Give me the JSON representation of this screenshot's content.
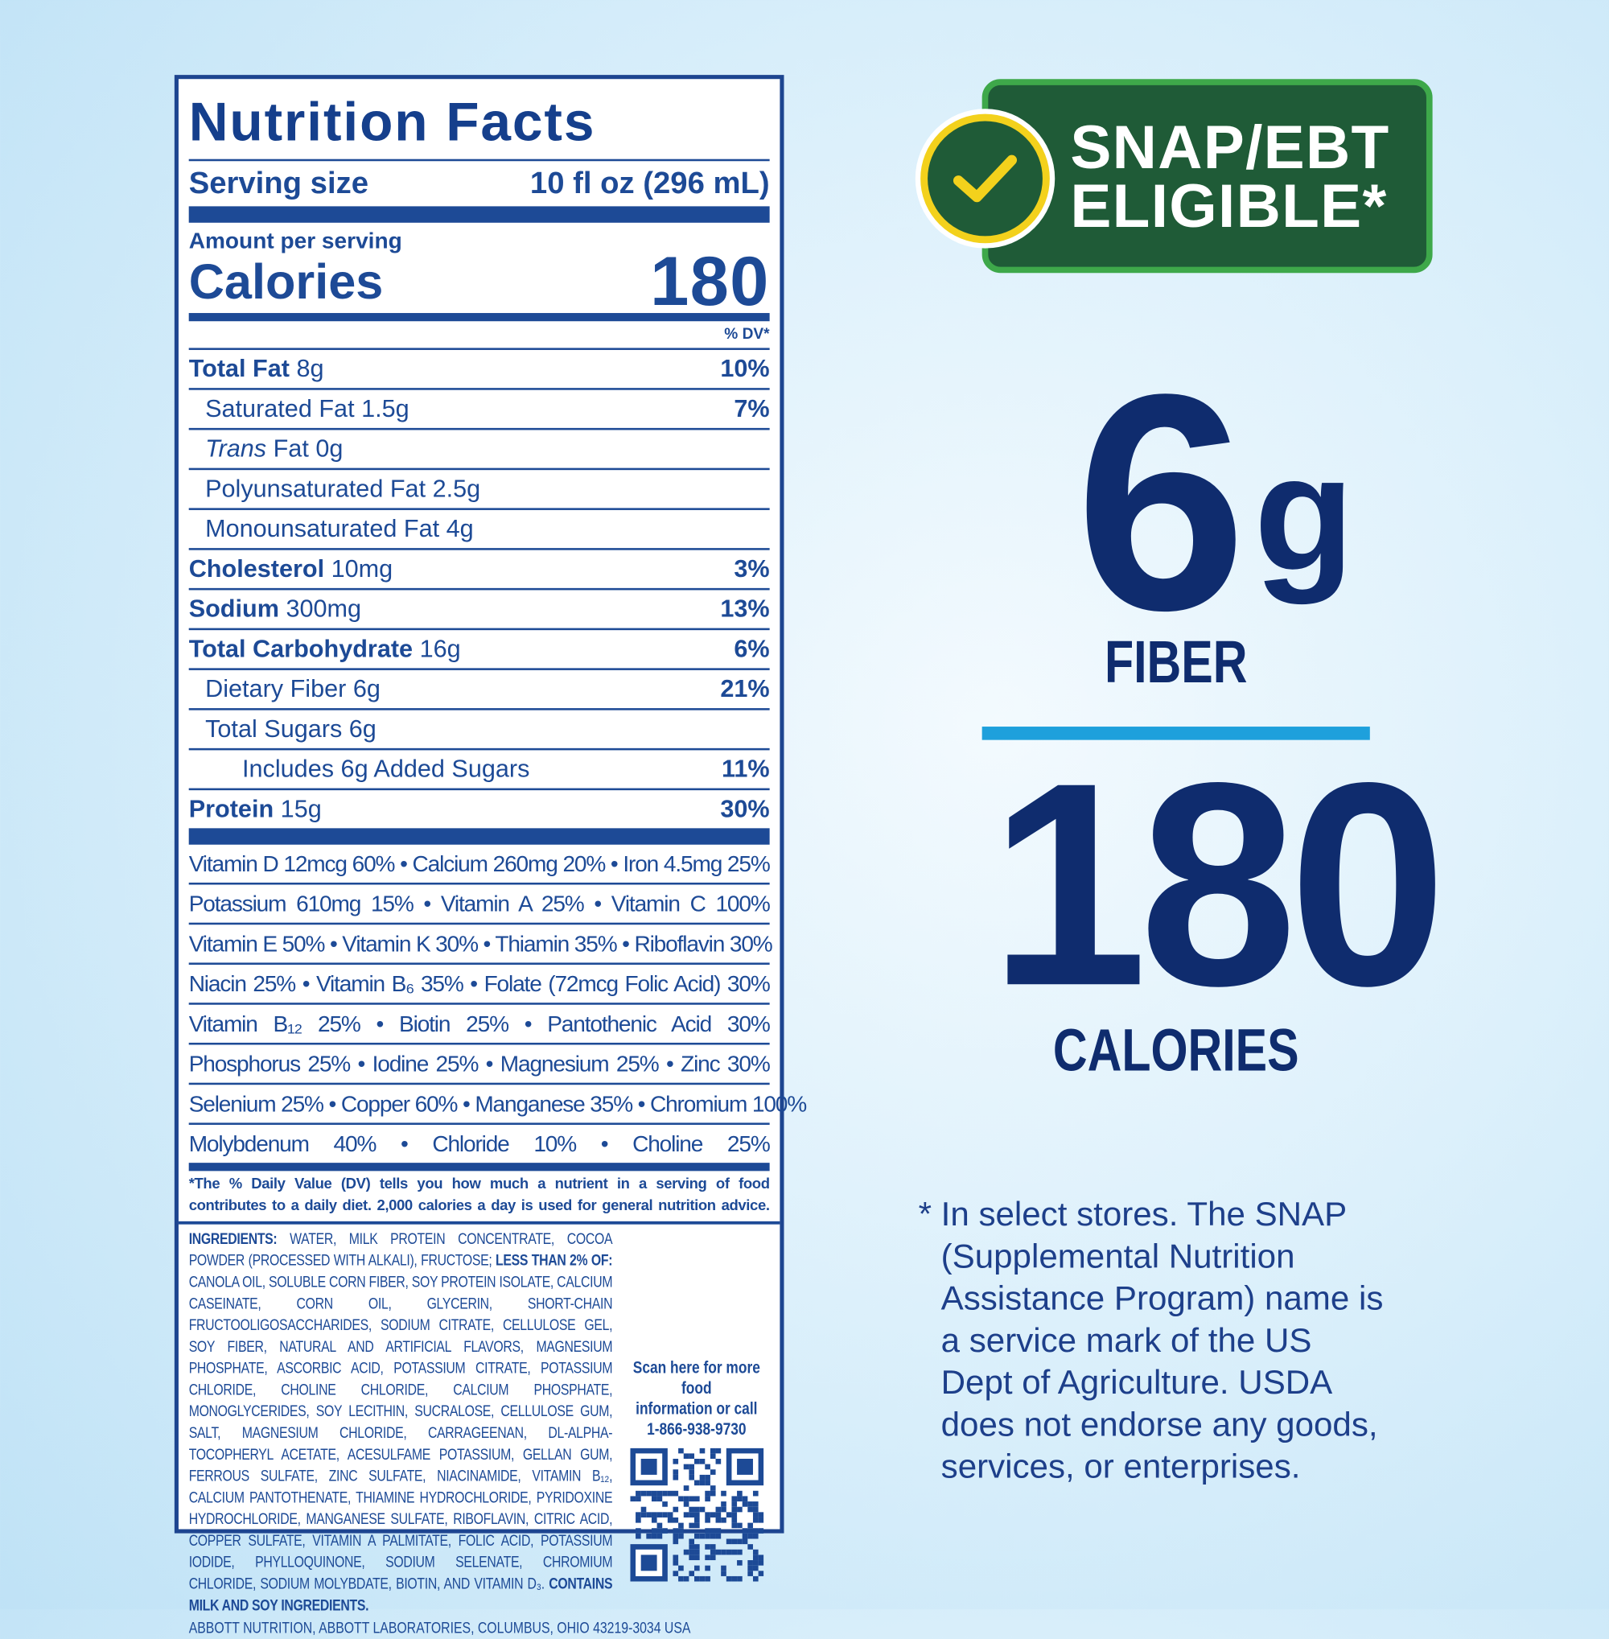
{
  "nutrition": {
    "title": "Nutrition Facts",
    "serving_label": "Serving size",
    "serving_value": "10 fl oz (296 mL)",
    "amount_per_serving": "Amount per serving",
    "calories_label": "Calories",
    "calories_value": "180",
    "dv_header": "% DV*",
    "rows": [
      {
        "bold": "Total Fat",
        "rest": " 8g",
        "dv": "10%"
      },
      {
        "bold": "",
        "rest": "Saturated Fat 1.5g",
        "dv": "7%"
      },
      {
        "italic": "Trans",
        "rest": " Fat 0g",
        "dv": ""
      },
      {
        "bold": "",
        "rest": "Polyunsaturated Fat 2.5g",
        "dv": ""
      },
      {
        "bold": "",
        "rest": "Monounsaturated Fat 4g",
        "dv": ""
      },
      {
        "bold": "Cholesterol",
        "rest": " 10mg",
        "dv": "3%"
      },
      {
        "bold": "Sodium",
        "rest": " 300mg",
        "dv": "13%"
      },
      {
        "bold": "Total Carbohydrate",
        "rest": " 16g",
        "dv": "6%"
      },
      {
        "bold": "",
        "rest": "Dietary Fiber 6g",
        "dv": "21%"
      },
      {
        "bold": "",
        "rest": "Total Sugars 6g",
        "dv": ""
      },
      {
        "bold": "",
        "rest": "Includes 6g Added Sugars",
        "dv": "11%"
      },
      {
        "bold": "Protein",
        "rest": " 15g",
        "dv": "30%"
      }
    ],
    "vitamins": [
      "Vitamin D 12mcg 60% • Calcium 260mg 20% • Iron 4.5mg 25%",
      "Potassium 610mg 15% • Vitamin A 25% • Vitamin C 100%",
      "Vitamin E 50% • Vitamin K 30% • Thiamin 35% • Riboflavin 30%",
      "Niacin 25% • Vitamin B₆ 35% • Folate (72mcg Folic Acid) 30%",
      "Vitamin B₁₂ 25% • Biotin 25% • Pantothenic Acid 30%",
      "Phosphorus 25% • Iodine 25% • Magnesium 25% • Zinc 30%",
      "Selenium 25% • Copper 60% • Manganese 35% • Chromium 100%",
      "Molybdenum 40% • Chloride 10% • Choline 25%"
    ],
    "footnote_line1": "*The % Daily Value (DV) tells you how much a nutrient in a serving of food",
    "footnote_line2": "contributes to a daily diet. 2,000 calories a day is used for general nutrition advice.",
    "ingredients_label": "INGREDIENTS:",
    "ingredients_a": " WATER, MILK PROTEIN CONCENTRATE, COCOA POWDER (PROCESSED WITH ALKALI), FRUCTOSE; ",
    "less_than_label": "LESS THAN 2% OF:",
    "ingredients_b": " CANOLA OIL, SOLUBLE CORN FIBER, SOY PROTEIN ISOLATE, CALCIUM CASEINATE, CORN OIL, GLYCERIN, SHORT-CHAIN FRUCTOOLIGOSACCHARIDES, SODIUM CITRATE, CELLULOSE GEL, SOY FIBER, NATURAL AND ARTIFICIAL FLAVORS, MAGNESIUM PHOSPHATE, ASCORBIC ACID, POTASSIUM CITRATE, POTASSIUM CHLORIDE, CHOLINE CHLORIDE, CALCIUM PHOSPHATE, MONOGLYCERIDES, SOY LECITHIN, SUCRALOSE, CELLULOSE GUM, SALT, MAGNESIUM CHLORIDE, CARRAGEENAN, dl-ALPHA-TOCOPHERYL ACETATE, ACESULFAME POTASSIUM, GELLAN GUM, FERROUS SULFATE, ZINC SULFATE, NIACINAMIDE, VITAMIN B₁₂, CALCIUM PANTOTHENATE, THIAMINE HYDROCHLORIDE, PYRIDOXINE HYDROCHLORIDE, MANGANESE SULFATE, RIBOFLAVIN, CITRIC ACID, COPPER SULFATE, VITAMIN A PALMITATE, FOLIC ACID, POTASSIUM IODIDE, PHYLLOQUINONE, SODIUM SELENATE, CHROMIUM CHLORIDE, SODIUM MOLYBDATE, BIOTIN, AND VITAMIN D₃. ",
    "contains": "CONTAINS MILK AND SOY INGREDIENTS.",
    "qr_text_1": "Scan here for more food",
    "qr_text_2": "information or call",
    "phone": "1-866-938-9730",
    "address": "ABBOTT NUTRITION, ABBOTT LABORATORIES, COLUMBUS, OHIO 43219-3034 USA"
  },
  "badge": {
    "line1": "SNAP/EBT",
    "line2": "ELIGIBLE*",
    "icon": "check-circle-icon",
    "colors": {
      "green": "#1f5b37",
      "border": "#3ea84a",
      "yellow": "#f3d11c"
    }
  },
  "highlights": {
    "fiber_value": "6",
    "fiber_unit": "g",
    "fiber_label": "FIBER",
    "calories_value": "180",
    "calories_label": "CALORIES",
    "accent": "#1ea0dc",
    "navy": "#0f2c6e"
  },
  "disclaimer": [
    "* In select stores. The SNAP",
    "(Supplemental Nutrition",
    "Assistance Program) name is",
    "a service mark of the US",
    "Dept of Agriculture. USDA",
    "does not endorse any goods,",
    "services, or enterprises."
  ]
}
